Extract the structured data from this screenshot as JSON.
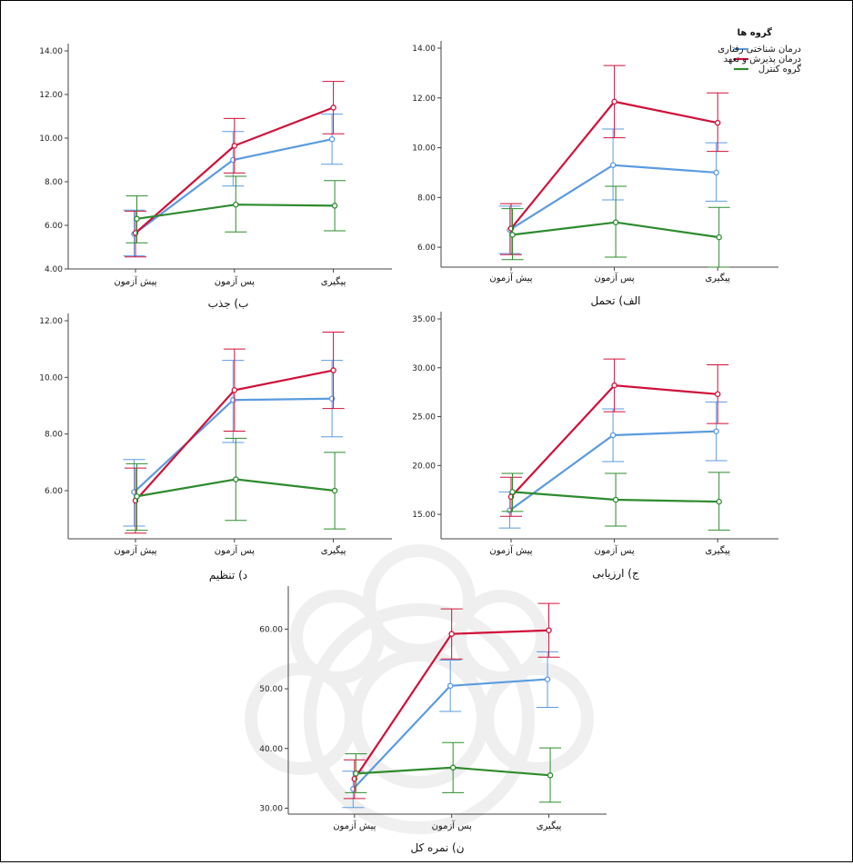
{
  "legend": {
    "title": "گروه ها",
    "position": "top-right",
    "items": [
      {
        "label": "درمان شناختی رفتاری",
        "color": "#5B9BE0"
      },
      {
        "label": "درمان پذیرش و تعهد",
        "color": "#D0103A"
      },
      {
        "label": "گروه کنترل",
        "color": "#2E8B2E"
      }
    ]
  },
  "chart_data": [
    {
      "type": "line",
      "title": "ب) جذب",
      "categories": [
        "پیش آزمون",
        "پس آزمون",
        "پیگیری"
      ],
      "ylim": [
        4,
        14
      ],
      "yticks": [
        4,
        6,
        8,
        10,
        12,
        14
      ],
      "tick_decimals": 2,
      "series": [
        {
          "name": "درمان شناختی رفتاری",
          "color": "#5B9BE0",
          "values": [
            5.6,
            9.0,
            9.95
          ],
          "err_low": [
            4.6,
            7.8,
            8.8
          ],
          "err_high": [
            6.7,
            10.3,
            11.1
          ]
        },
        {
          "name": "درمان پذیرش و تعهد",
          "color": "#D0103A",
          "values": [
            5.65,
            9.65,
            11.4
          ],
          "err_low": [
            4.55,
            8.4,
            10.2
          ],
          "err_high": [
            6.65,
            10.9,
            12.6
          ]
        },
        {
          "name": "گروه کنترل",
          "color": "#2E8B2E",
          "values": [
            6.3,
            6.95,
            6.9
          ],
          "err_low": [
            5.2,
            5.7,
            5.75
          ],
          "err_high": [
            7.35,
            8.25,
            8.05
          ]
        }
      ]
    },
    {
      "type": "line",
      "title": "الف) تحمل",
      "categories": [
        "پیش آزمون",
        "پس آزمون",
        "پیگیری"
      ],
      "ylim": [
        5.2,
        14
      ],
      "yticks": [
        6,
        8,
        10,
        12,
        14
      ],
      "tick_decimals": 2,
      "series": [
        {
          "name": "درمان شناختی رفتاری",
          "color": "#5B9BE0",
          "values": [
            6.7,
            9.3,
            9.0
          ],
          "err_low": [
            5.75,
            7.9,
            7.85
          ],
          "err_high": [
            7.65,
            10.75,
            10.2
          ]
        },
        {
          "name": "درمان پذیرش و تعهد",
          "color": "#D0103A",
          "values": [
            6.75,
            11.85,
            11.0
          ],
          "err_low": [
            5.7,
            10.4,
            9.85
          ],
          "err_high": [
            7.75,
            13.3,
            12.2
          ]
        },
        {
          "name": "گروه کنترل",
          "color": "#2E8B2E",
          "values": [
            6.5,
            7.0,
            6.4
          ],
          "err_low": [
            5.5,
            5.6,
            5.2
          ],
          "err_high": [
            7.55,
            8.45,
            7.6
          ]
        }
      ]
    },
    {
      "type": "line",
      "title": "د) تنظیم",
      "categories": [
        "پیش آزمون",
        "پس آزمون",
        "پیگیری"
      ],
      "ylim": [
        4.3,
        12
      ],
      "yticks": [
        6,
        8,
        10,
        12
      ],
      "tick_decimals": 2,
      "series": [
        {
          "name": "درمان شناختی رفتاری",
          "color": "#5B9BE0",
          "values": [
            5.95,
            9.2,
            9.25
          ],
          "err_low": [
            4.75,
            7.7,
            7.9
          ],
          "err_high": [
            7.1,
            10.6,
            10.6
          ]
        },
        {
          "name": "درمان پذیرش و تعهد",
          "color": "#D0103A",
          "values": [
            5.65,
            9.55,
            10.25
          ],
          "err_low": [
            4.5,
            8.1,
            8.9
          ],
          "err_high": [
            6.8,
            11.0,
            11.6
          ]
        },
        {
          "name": "گروه کنترل",
          "color": "#2E8B2E",
          "values": [
            5.8,
            6.4,
            6.0
          ],
          "err_low": [
            4.6,
            4.95,
            4.65
          ],
          "err_high": [
            6.95,
            7.85,
            7.35
          ]
        }
      ]
    },
    {
      "type": "line",
      "title": "ج) ارزیابی",
      "categories": [
        "پیش آزمون",
        "پس آزمون",
        "پیگیری"
      ],
      "ylim": [
        12.5,
        35
      ],
      "yticks": [
        15,
        20,
        25,
        30,
        35
      ],
      "tick_decimals": 2,
      "series": [
        {
          "name": "درمان شناختی رفتاری",
          "color": "#5B9BE0",
          "values": [
            15.4,
            23.1,
            23.5
          ],
          "err_low": [
            13.6,
            20.4,
            20.5
          ],
          "err_high": [
            17.3,
            25.8,
            26.5
          ]
        },
        {
          "name": "درمان پذیرش و تعهد",
          "color": "#D0103A",
          "values": [
            16.8,
            28.2,
            27.3
          ],
          "err_low": [
            14.8,
            25.5,
            24.3
          ],
          "err_high": [
            18.8,
            30.9,
            30.3
          ]
        },
        {
          "name": "گروه کنترل",
          "color": "#2E8B2E",
          "values": [
            17.3,
            16.5,
            16.3
          ],
          "err_low": [
            15.3,
            13.8,
            13.4
          ],
          "err_high": [
            19.2,
            19.2,
            19.3
          ]
        }
      ]
    },
    {
      "type": "line",
      "title": "ن) نمره کل",
      "categories": [
        "پیش آزمون",
        "پس آزمون",
        "پیگیری"
      ],
      "ylim": [
        29,
        66
      ],
      "yticks": [
        30,
        40,
        50,
        60
      ],
      "tick_decimals": 2,
      "series": [
        {
          "name": "درمان شناختی رفتاری",
          "color": "#5B9BE0",
          "values": [
            33.2,
            50.5,
            51.6
          ],
          "err_low": [
            30.1,
            46.2,
            46.9
          ],
          "err_high": [
            36.2,
            54.8,
            56.2
          ]
        },
        {
          "name": "درمان پذیرش و تعهد",
          "color": "#D0103A",
          "values": [
            34.9,
            59.2,
            59.8
          ],
          "err_low": [
            31.6,
            55.0,
            55.3
          ],
          "err_high": [
            38.1,
            63.4,
            64.3
          ]
        },
        {
          "name": "گروه کنترل",
          "color": "#2E8B2E",
          "values": [
            35.8,
            36.8,
            35.5
          ],
          "err_low": [
            32.6,
            32.6,
            31.0
          ],
          "err_high": [
            39.1,
            41.0,
            40.1
          ]
        }
      ]
    }
  ]
}
